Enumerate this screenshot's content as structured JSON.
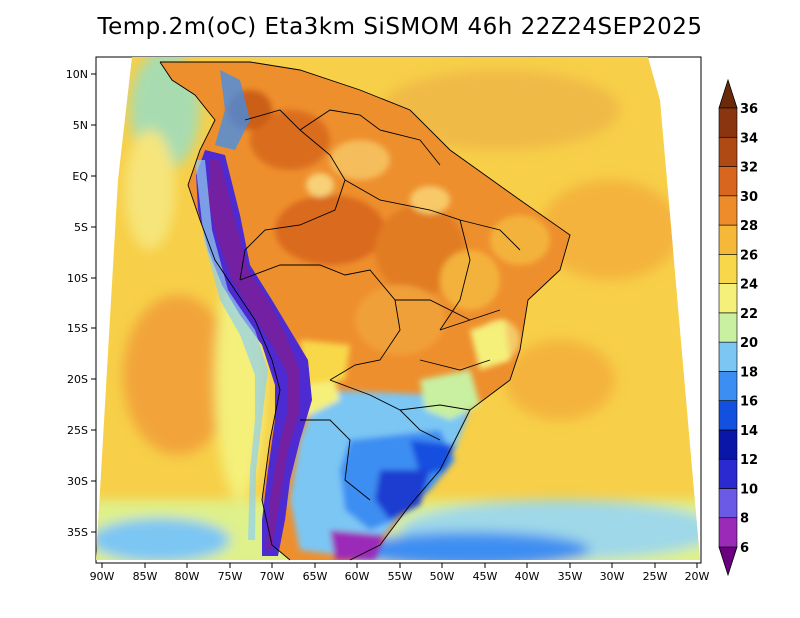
{
  "title": "Temp.2m(oC) Eta3km SiSMOM 46h 22Z24SEP2025",
  "lat_labels": [
    "10N",
    "5N",
    "EQ",
    "5S",
    "10S",
    "15S",
    "20S",
    "25S",
    "30S",
    "35S"
  ],
  "lon_labels": [
    "90W",
    "85W",
    "80W",
    "75W",
    "70W",
    "65W",
    "60W",
    "55W",
    "50W",
    "45W",
    "40W",
    "35W",
    "30W",
    "25W",
    "20W"
  ],
  "colorbar": {
    "levels": [
      "6",
      "8",
      "10",
      "12",
      "14",
      "16",
      "18",
      "20",
      "22",
      "24",
      "26",
      "28",
      "30",
      "32",
      "34",
      "36"
    ],
    "colors": [
      "#6a0080",
      "#9b2ab8",
      "#6a5ae6",
      "#2a2ad0",
      "#0a16a8",
      "#1450e0",
      "#3c8ef2",
      "#7cc6f4",
      "#c8f0a0",
      "#f4f07a",
      "#f8d84a",
      "#f6b838",
      "#ee8c2c",
      "#d8661e",
      "#b04a14",
      "#8a3410",
      "#6a2a0a"
    ]
  },
  "colors": {
    "ocean": "#f7cf48",
    "land_warm": "#ef9a34",
    "andes": "#4d2bd0",
    "border": "#000000"
  }
}
